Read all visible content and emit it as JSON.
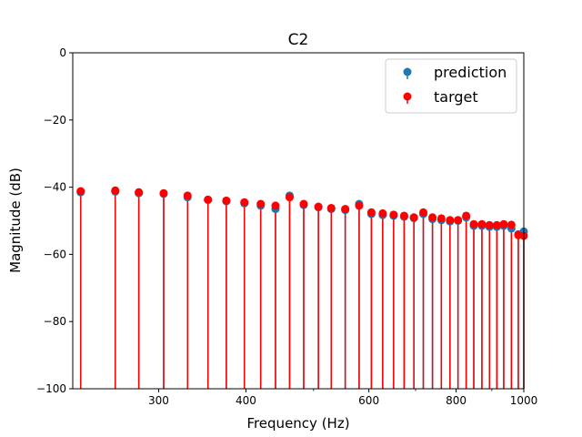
{
  "chart_data": {
    "type": "stem",
    "title": "C2",
    "xlabel": "Frequency (Hz)",
    "ylabel": "Magnitude (dB)",
    "xscale": "log",
    "xlim": [
      226,
      1000
    ],
    "ylim": [
      -100,
      0
    ],
    "xticks": [
      {
        "value": 300,
        "label": "300"
      },
      {
        "value": 400,
        "label": "400"
      },
      {
        "value": 600,
        "label": "600"
      },
      {
        "value": 800,
        "label": "800"
      },
      {
        "value": 1000,
        "label": "1000"
      }
    ],
    "yticks": [
      {
        "value": 0,
        "label": "0"
      },
      {
        "value": -20,
        "label": "−20"
      },
      {
        "value": -40,
        "label": "−40"
      },
      {
        "value": -60,
        "label": "−60"
      },
      {
        "value": -80,
        "label": "−80"
      },
      {
        "value": -100,
        "label": "−100"
      }
    ],
    "x": [
      232,
      260,
      281,
      305,
      330,
      353,
      375,
      398,
      420,
      441,
      462,
      484,
      508,
      530,
      555,
      581,
      605,
      628,
      651,
      674,
      696,
      718,
      740,
      762,
      784,
      805,
      827,
      848,
      871,
      893,
      915,
      936,
      960,
      982,
      1000
    ],
    "series": [
      {
        "name": "prediction",
        "color": "#1f77b4",
        "values": [
          -41.5,
          -41.3,
          -41.8,
          -42.0,
          -43.0,
          -43.8,
          -44.2,
          -44.8,
          -45.5,
          -46.5,
          -42.5,
          -45.3,
          -46.0,
          -46.5,
          -46.8,
          -45.0,
          -48.0,
          -48.3,
          -48.5,
          -48.8,
          -49.2,
          -48.0,
          -49.5,
          -49.8,
          -50.2,
          -50.0,
          -49.0,
          -51.5,
          -51.5,
          -51.8,
          -51.8,
          -51.5,
          -52.3,
          -54.0,
          -53.2
        ]
      },
      {
        "name": "target",
        "color": "#ff0000",
        "values": [
          -41.2,
          -41.0,
          -41.5,
          -41.8,
          -42.5,
          -43.7,
          -44.0,
          -44.5,
          -45.0,
          -45.5,
          -43.0,
          -45.0,
          -45.8,
          -46.2,
          -46.5,
          -45.5,
          -47.5,
          -47.8,
          -48.2,
          -48.5,
          -49.0,
          -47.5,
          -49.0,
          -49.3,
          -49.8,
          -49.8,
          -48.5,
          -51.0,
          -51.0,
          -51.3,
          -51.3,
          -51.0,
          -51.2,
          -54.3,
          -54.5
        ]
      }
    ],
    "legend": {
      "position": "top-right",
      "entries": [
        "prediction",
        "target"
      ]
    }
  }
}
